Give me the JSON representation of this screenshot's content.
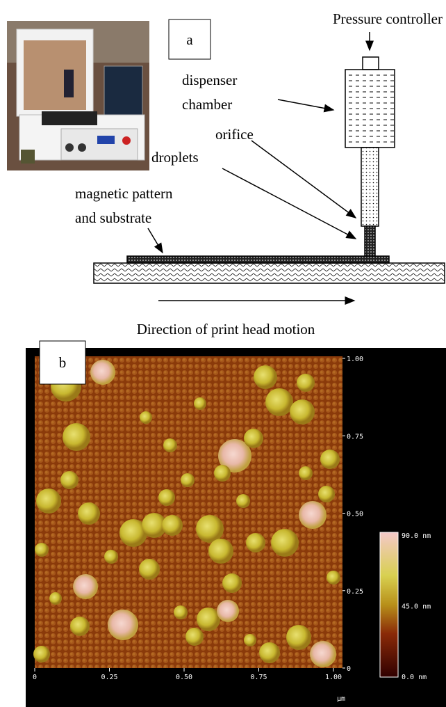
{
  "panel_a": {
    "label": "a",
    "pressure_controller": "Pressure controller",
    "dispenser_1": "dispenser",
    "dispenser_2": "chamber",
    "orifice": "orifice",
    "droplets": "droplets",
    "substrate_1": "magnetic pattern",
    "substrate_2": "and substrate",
    "caption": "Direction of print head motion"
  },
  "panel_b": {
    "label": "b",
    "x_ticks": [
      "0",
      "0.25",
      "0.50",
      "0.75",
      "1.00"
    ],
    "y_ticks": [
      "0",
      "0.25",
      "0.50",
      "0.75",
      "1.00"
    ],
    "unit": "µm",
    "colorbar_ticks": [
      "90.0 nm",
      "45.0 nm",
      "0.0 nm"
    ]
  }
}
